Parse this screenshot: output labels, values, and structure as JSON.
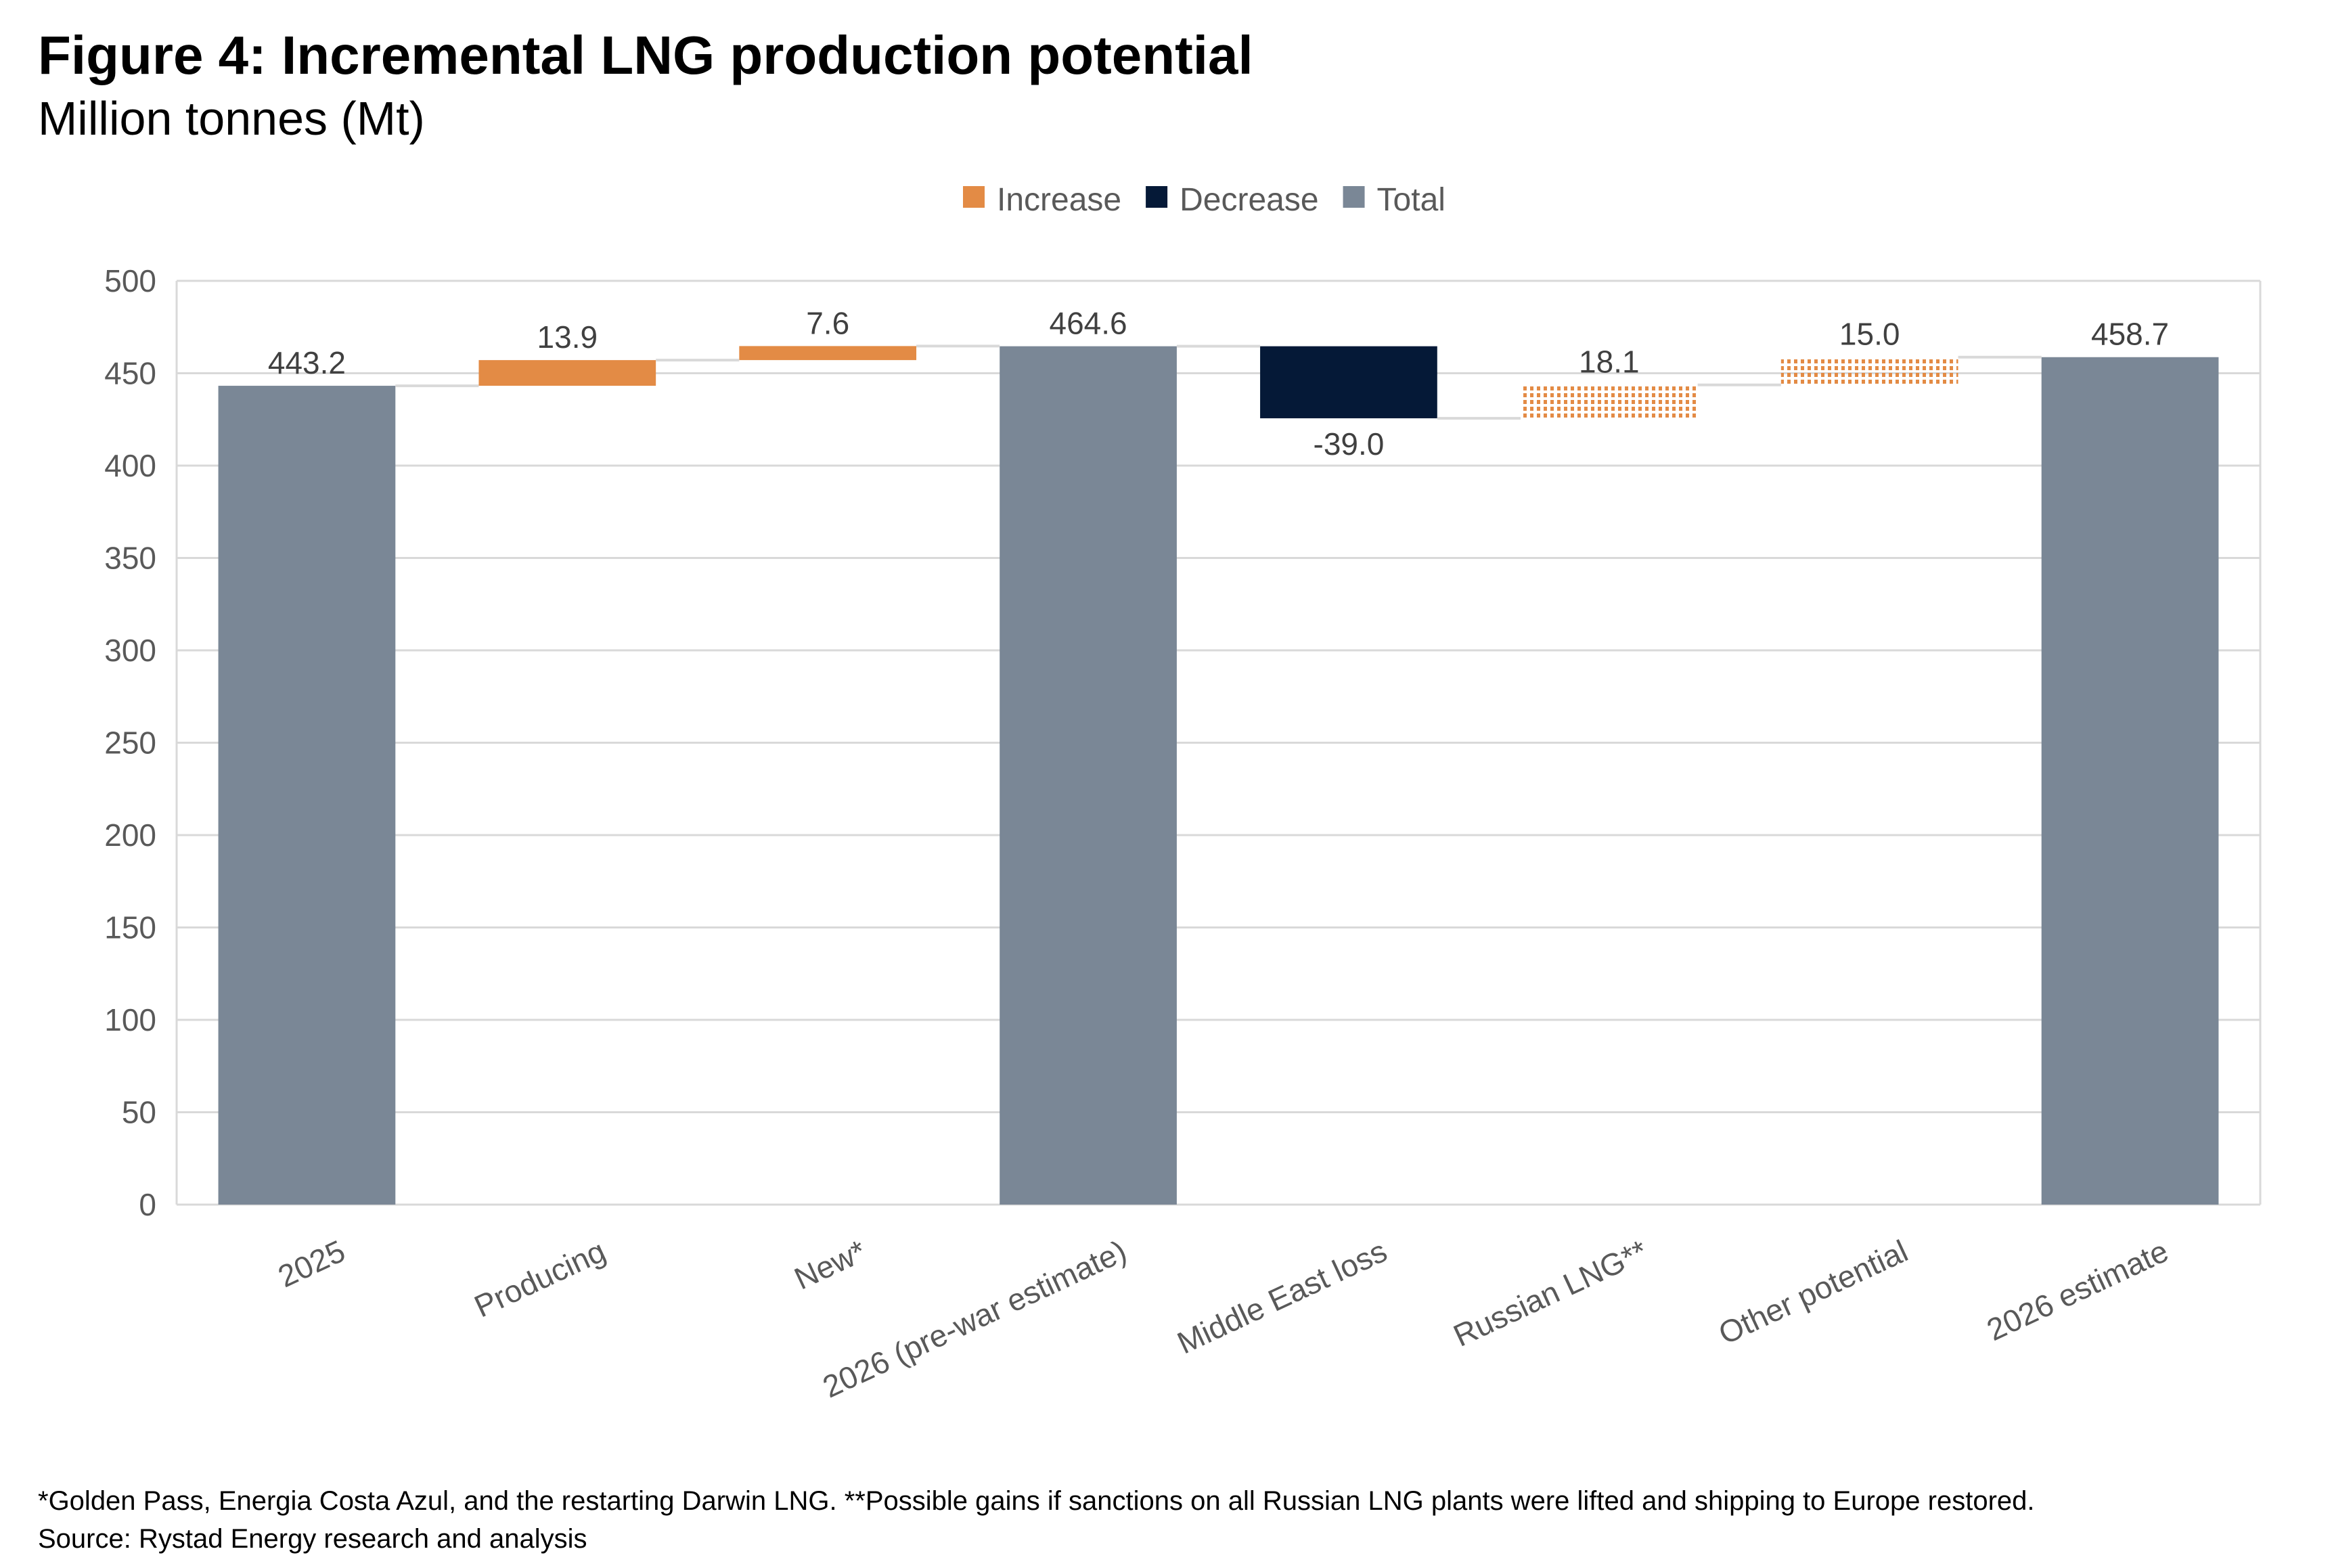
{
  "title": "Figure 4: Incremental LNG production potential",
  "subtitle": "Million tonnes (Mt)",
  "footnote": "*Golden Pass, Energia Costa Azul, and the restarting Darwin LNG. **Possible gains if sanctions on all Russian LNG plants were lifted and shipping to Europe restored.",
  "source": "Source: Rystad Energy research and analysis",
  "chart_data": {
    "type": "waterfall",
    "categories": [
      "2025",
      "Producing",
      "New*",
      "2026 (pre-war estimate)",
      "Middle East loss",
      "Russian LNG**",
      "Other potential",
      "2026 estimate"
    ],
    "values": [
      443.2,
      13.9,
      7.6,
      464.6,
      -39.0,
      18.1,
      15.0,
      458.7
    ],
    "kinds": [
      "total",
      "increase",
      "increase",
      "total",
      "decrease",
      "increase-potential",
      "increase-potential",
      "total"
    ],
    "data_labels": [
      "443.2",
      "13.9",
      "7.6",
      "464.6",
      "-39.0",
      "18.1",
      "15.0",
      "458.7"
    ],
    "legend": [
      "Increase",
      "Decrease",
      "Total"
    ],
    "legend_placement": "top-center",
    "ylim": [
      0,
      500
    ],
    "yticks": [
      0,
      50,
      100,
      150,
      200,
      250,
      300,
      350,
      400,
      450,
      500
    ],
    "grid": true,
    "colors": {
      "increase": "#E38B45",
      "decrease": "#051937",
      "total": "#7A8796",
      "grid": "#D9D9D9"
    }
  }
}
